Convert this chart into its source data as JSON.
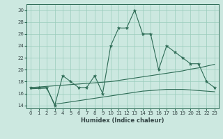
{
  "title": "",
  "xlabel": "Humidex (Indice chaleur)",
  "ylabel": "",
  "background_color": "#cce8e0",
  "grid_color": "#99ccbb",
  "line_color": "#2d6b55",
  "xlim": [
    -0.5,
    23.5
  ],
  "ylim": [
    13.5,
    31
  ],
  "yticks": [
    14,
    16,
    18,
    20,
    22,
    24,
    26,
    28,
    30
  ],
  "xticks": [
    0,
    1,
    2,
    3,
    4,
    5,
    6,
    7,
    8,
    9,
    10,
    11,
    12,
    13,
    14,
    15,
    16,
    17,
    18,
    19,
    20,
    21,
    22,
    23
  ],
  "line1_x": [
    0,
    1,
    2,
    3,
    4,
    5,
    6,
    7,
    8,
    9,
    10,
    11,
    12,
    13,
    14,
    15,
    16,
    17,
    18,
    19,
    20,
    21,
    22,
    23
  ],
  "line1_y": [
    17,
    17,
    17,
    14,
    19,
    18,
    17,
    17,
    19,
    16,
    24,
    27,
    27,
    30,
    26,
    26,
    20,
    24,
    23,
    22,
    21,
    21,
    18,
    17
  ],
  "line2_x": [
    0,
    1,
    2,
    3,
    4,
    5,
    6,
    7,
    8,
    9,
    10,
    11,
    12,
    13,
    14,
    15,
    16,
    17,
    18,
    19,
    20,
    21,
    22,
    23
  ],
  "line2_y": [
    17.0,
    17.1,
    17.2,
    17.3,
    17.4,
    17.5,
    17.6,
    17.7,
    17.8,
    17.9,
    18.0,
    18.2,
    18.4,
    18.6,
    18.8,
    19.0,
    19.2,
    19.4,
    19.6,
    19.8,
    20.1,
    20.3,
    20.6,
    20.9
  ],
  "line3_x": [
    0,
    1,
    2,
    3,
    4,
    5,
    6,
    7,
    8,
    9,
    10,
    11,
    12,
    13,
    14,
    15,
    16,
    17,
    18,
    19,
    20,
    21,
    22,
    23
  ],
  "line3_y": [
    16.8,
    16.85,
    16.9,
    14.2,
    14.4,
    14.6,
    14.8,
    15.0,
    15.2,
    15.4,
    15.6,
    15.8,
    16.0,
    16.2,
    16.4,
    16.5,
    16.6,
    16.7,
    16.7,
    16.7,
    16.6,
    16.5,
    16.4,
    16.3
  ]
}
